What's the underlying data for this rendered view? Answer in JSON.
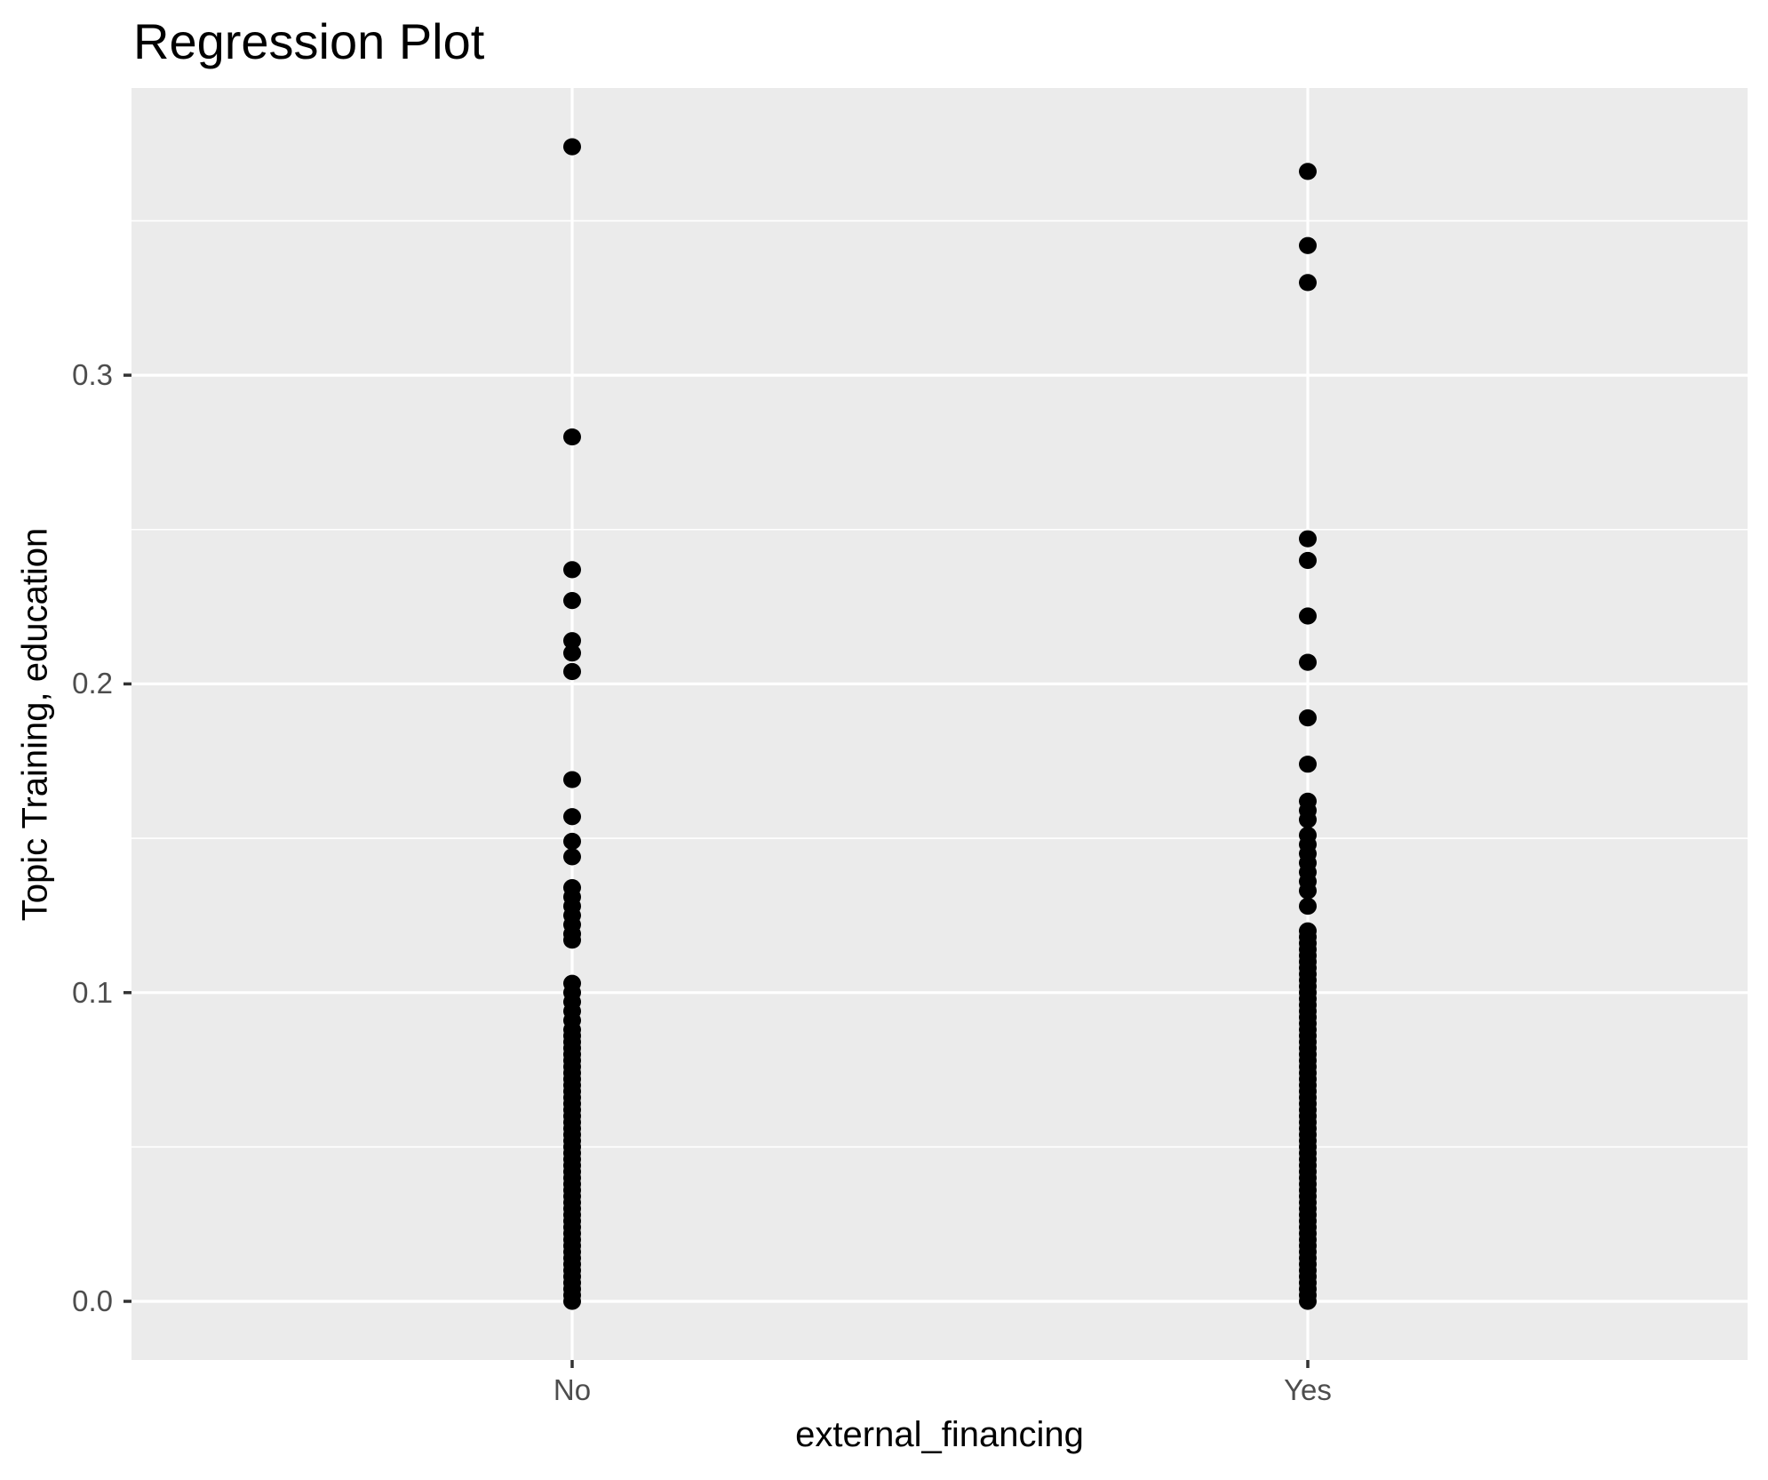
{
  "chart_data": {
    "type": "scatter",
    "title": "Regression Plot",
    "xlabel": "external_financing",
    "ylabel": "Topic Training, education",
    "categories": [
      "No",
      "Yes"
    ],
    "y_axis": {
      "ticks": [
        {
          "label": "0.0",
          "value": 0.0
        },
        {
          "label": "0.1",
          "value": 0.1
        },
        {
          "label": "0.2",
          "value": 0.2
        },
        {
          "label": "0.3",
          "value": 0.3
        }
      ],
      "minor_breaks": [
        0.05,
        0.15,
        0.25,
        0.35
      ],
      "ylim": [
        -0.019,
        0.393
      ]
    },
    "legend": "none",
    "grid": "on",
    "series": [
      {
        "name": "No",
        "values": [
          0.374,
          0.28,
          0.237,
          0.227,
          0.214,
          0.21,
          0.204,
          0.169,
          0.157,
          0.149,
          0.144,
          0.134,
          0.131,
          0.128,
          0.125,
          0.122,
          0.119,
          0.117,
          0.103,
          0.1,
          0.097,
          0.094,
          0.091,
          0.088,
          0.086,
          0.084,
          0.082,
          0.08,
          0.078,
          0.076,
          0.074,
          0.072,
          0.07,
          0.068,
          0.066,
          0.064,
          0.062,
          0.06,
          0.058,
          0.056,
          0.054,
          0.052,
          0.05,
          0.048,
          0.046,
          0.044,
          0.042,
          0.04,
          0.038,
          0.036,
          0.034,
          0.032,
          0.03,
          0.028,
          0.026,
          0.024,
          0.022,
          0.02,
          0.018,
          0.016,
          0.014,
          0.012,
          0.01,
          0.008,
          0.006,
          0.004,
          0.002,
          0.0
        ]
      },
      {
        "name": "Yes",
        "values": [
          0.366,
          0.342,
          0.33,
          0.247,
          0.24,
          0.222,
          0.207,
          0.189,
          0.174,
          0.162,
          0.159,
          0.156,
          0.151,
          0.148,
          0.145,
          0.142,
          0.139,
          0.136,
          0.133,
          0.128,
          0.12,
          0.118,
          0.116,
          0.114,
          0.112,
          0.11,
          0.108,
          0.106,
          0.104,
          0.102,
          0.1,
          0.098,
          0.096,
          0.094,
          0.092,
          0.09,
          0.088,
          0.086,
          0.084,
          0.082,
          0.08,
          0.078,
          0.076,
          0.074,
          0.072,
          0.07,
          0.068,
          0.066,
          0.064,
          0.062,
          0.06,
          0.058,
          0.056,
          0.054,
          0.052,
          0.05,
          0.048,
          0.046,
          0.044,
          0.042,
          0.04,
          0.038,
          0.036,
          0.034,
          0.032,
          0.03,
          0.028,
          0.026,
          0.024,
          0.022,
          0.02,
          0.018,
          0.016,
          0.014,
          0.012,
          0.01,
          0.008,
          0.006,
          0.004,
          0.002,
          0.0
        ]
      }
    ],
    "style": {
      "panel_bg": "#EBEBEB",
      "grid_color": "#FFFFFF",
      "point_color": "#000000",
      "tick_color": "#333333",
      "tick_label_color": "#4D4D4D",
      "title_color": "#000000"
    }
  }
}
